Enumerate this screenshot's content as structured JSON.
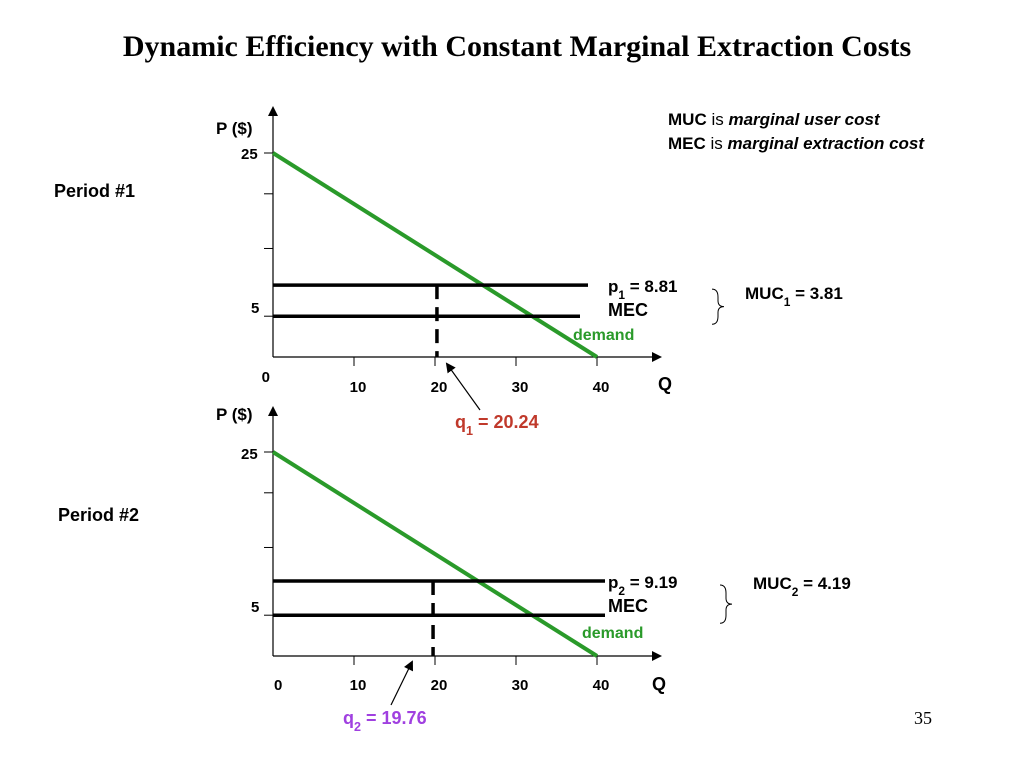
{
  "title": "Dynamic Efficiency with Constant Marginal Extraction Costs",
  "legend_note": {
    "muc_abbr": "MUC",
    "muc_is": " is ",
    "muc_def": "marginal user cost",
    "mec_abbr": "MEC",
    "mec_is": " is ",
    "mec_def": "marginal extraction cost"
  },
  "page_number": "35",
  "colors": {
    "demand": "#2a9a2a",
    "q1": "#c0392b",
    "q2": "#a040e0",
    "lines": "#000000"
  },
  "chart_data": [
    {
      "type": "line",
      "period_label": "Period #1",
      "ylabel": "P ($)",
      "xlabel": "Q",
      "xlim": [
        0,
        40
      ],
      "ylim": [
        0,
        25
      ],
      "x_ticks": [
        "0",
        "10",
        "20",
        "30",
        "40"
      ],
      "y_ticks": [
        "5",
        "25"
      ],
      "demand": {
        "label": "demand",
        "x": [
          0,
          40
        ],
        "y": [
          25,
          0
        ]
      },
      "price": {
        "p_sub": "1",
        "value": 8.81,
        "text": " = 8.81"
      },
      "mec": {
        "label": "MEC",
        "value": 5
      },
      "muc": {
        "sub": "1",
        "text": " = 3.81"
      },
      "q": {
        "sub": "1",
        "value": 20.24,
        "text": " = 20.24"
      }
    },
    {
      "type": "line",
      "period_label": "Period #2",
      "ylabel": "P ($)",
      "xlabel": "Q",
      "xlim": [
        0,
        40
      ],
      "ylim": [
        0,
        25
      ],
      "x_ticks": [
        "0",
        "10",
        "20",
        "30",
        "40"
      ],
      "y_ticks": [
        "5",
        "25"
      ],
      "demand": {
        "label": "demand",
        "x": [
          0,
          40
        ],
        "y": [
          25,
          0
        ]
      },
      "price": {
        "p_sub": "2",
        "value": 9.19,
        "text": " = 9.19"
      },
      "mec": {
        "label": "MEC",
        "value": 5
      },
      "muc": {
        "sub": "2",
        "text": " = 4.19"
      },
      "q": {
        "sub": "2",
        "value": 19.76,
        "text": " = 19.76"
      }
    }
  ]
}
